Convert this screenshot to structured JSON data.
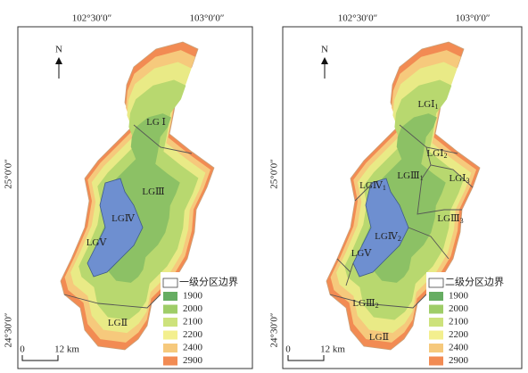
{
  "panels": [
    {
      "x_labels": [
        "102°30′0″",
        "103°0′0″"
      ],
      "y_labels": [
        "25°0′0″",
        "24°30′0″"
      ],
      "north": "N",
      "regions": [
        {
          "text": "LG Ⅰ"
        },
        {
          "text": "LGⅢ"
        },
        {
          "text": "LGⅣ"
        },
        {
          "text": "LGⅤ"
        },
        {
          "text": "LGⅡ"
        }
      ],
      "legend": {
        "title": "一级分区边界",
        "items": [
          {
            "label": "1900",
            "color": "#66ad62"
          },
          {
            "label": "2000",
            "color": "#9fcd68"
          },
          {
            "label": "2100",
            "color": "#cde27c"
          },
          {
            "label": "2200",
            "color": "#f3ef8e"
          },
          {
            "label": "2400",
            "color": "#f6c97c"
          },
          {
            "label": "2900",
            "color": "#f28b53"
          }
        ]
      },
      "scale": [
        "0",
        "12 km"
      ]
    },
    {
      "x_labels": [
        "102°30′0″",
        "103°0′0″"
      ],
      "y_labels": [
        "25°0′0″",
        "24°30′0″"
      ],
      "north": "N",
      "regions": [
        {
          "text": "LGⅠ",
          "sub": "1"
        },
        {
          "text": "LGⅠ",
          "sub": "2"
        },
        {
          "text": "LGⅠ",
          "sub": "3"
        },
        {
          "text": "LGⅢ",
          "sub": "1"
        },
        {
          "text": "LGⅣ",
          "sub": "1"
        },
        {
          "text": "LGⅢ",
          "sub": "3"
        },
        {
          "text": "LGⅣ",
          "sub": "2"
        },
        {
          "text": "LGⅤ"
        },
        {
          "text": "LGⅢ",
          "sub": "2"
        },
        {
          "text": "LGⅡ"
        }
      ],
      "legend": {
        "title": "二级分区边界",
        "items": [
          {
            "label": "1900",
            "color": "#66ad62"
          },
          {
            "label": "2000",
            "color": "#9fcd68"
          },
          {
            "label": "2100",
            "color": "#cde27c"
          },
          {
            "label": "2200",
            "color": "#f3ef8e"
          },
          {
            "label": "2400",
            "color": "#f6c97c"
          },
          {
            "label": "2900",
            "color": "#f28b53"
          }
        ]
      },
      "scale": [
        "0",
        "12 km"
      ]
    }
  ]
}
